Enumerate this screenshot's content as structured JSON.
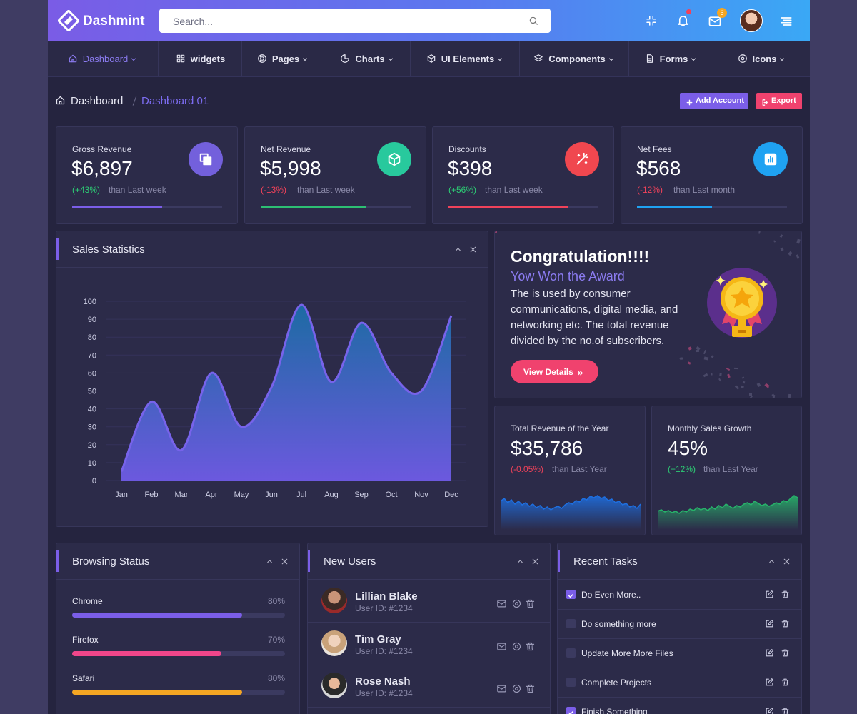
{
  "header": {
    "brand": "Dashmint",
    "search_placeholder": "Search...",
    "mail_badge": 6
  },
  "nav": [
    "Dashboard",
    "widgets",
    "Pages",
    "Charts",
    "UI Elements",
    "Components",
    "Forms",
    "Icons"
  ],
  "breadcrumb": [
    "Dashboard",
    "Dashboard 01"
  ],
  "actions": [
    "Add Account",
    "Export"
  ],
  "stat_cards": [
    {
      "title": "Gross Revenue",
      "value": "$6,897",
      "change": "(+43%)",
      "period": "than Last week",
      "progress": 60,
      "color": "#7b5ee8",
      "change_color": "#2dcb74",
      "icon_color": "#7360dc"
    },
    {
      "title": "Net Revenue",
      "value": "$5,998",
      "change": "(-13%)",
      "period": "than Last week",
      "progress": 70,
      "color": "#2dbf73",
      "change_color": "#f0425a",
      "icon_color": "#28c99d"
    },
    {
      "title": "Discounts",
      "value": "$398",
      "change": "(+56%)",
      "period": "than Last week",
      "progress": 80,
      "color": "#f0425a",
      "change_color": "#2dcb74",
      "icon_color": "#f0474f"
    },
    {
      "title": "Net Fees",
      "value": "$568",
      "change": "(-12%)",
      "period": "than Last month",
      "progress": 50,
      "color": "#1fa2f2",
      "change_color": "#f0425a",
      "icon_color": "#1fa2f2"
    }
  ],
  "sales_statistics": {
    "title": "Sales Statistics",
    "chart": {
      "type": "area",
      "categories": [
        "Jan",
        "Feb",
        "Mar",
        "Apr",
        "May",
        "Jun",
        "Jul",
        "Aug",
        "Sep",
        "Oct",
        "Nov",
        "Dec"
      ],
      "values": [
        5,
        44,
        17,
        60,
        30,
        52,
        98,
        55,
        88,
        60,
        50,
        92
      ],
      "ylim": [
        0,
        100
      ],
      "yticks": [
        0,
        10,
        20,
        30,
        40,
        50,
        60,
        70,
        80,
        90,
        100
      ],
      "color": "#6f5be6",
      "grid": true
    }
  },
  "award": {
    "title": "Congratulation!!!!",
    "subtitle": "Yow Won the Award",
    "text": "The is used by consumer communications, digital media, and networking etc. The total revenue divided by the no.of subscribers.",
    "button": "View Details"
  },
  "summary_cards": [
    {
      "title": "Total Revenue of the Year",
      "value": "$35,786",
      "change": "(-0.05%)",
      "period": "than Last Year",
      "change_color": "#f0425a",
      "color": "#1e6fe0",
      "sparkline": [
        40,
        44,
        38,
        42,
        36,
        40,
        35,
        38,
        33,
        36,
        31,
        34,
        29,
        32,
        28,
        31,
        33,
        30,
        35,
        38,
        36,
        41,
        39,
        44,
        42,
        47,
        45,
        48,
        44,
        46,
        41,
        43,
        38,
        40,
        35,
        37,
        32,
        34,
        30,
        36
      ]
    },
    {
      "title": "Monthly Sales Growth",
      "value": "45%",
      "change": "(+12%)",
      "period": "than Last Year",
      "change_color": "#2dcb74",
      "color": "#27b36a",
      "sparkline": [
        26,
        28,
        25,
        27,
        24,
        26,
        23,
        27,
        25,
        29,
        27,
        31,
        28,
        30,
        27,
        32,
        29,
        34,
        31,
        36,
        33,
        30,
        34,
        32,
        36,
        38,
        35,
        40,
        37,
        34,
        36,
        33,
        35,
        38,
        36,
        41,
        39,
        44,
        48,
        45
      ]
    }
  ],
  "browsing_status": {
    "title": "Browsing Status",
    "items": [
      {
        "name": "Chrome",
        "value": 80,
        "value_label": "80%",
        "color": "#7b5ee8"
      },
      {
        "name": "Firefox",
        "value": 70,
        "value_label": "70%",
        "color": "#f0468a"
      },
      {
        "name": "Safari",
        "value": 80,
        "value_label": "80%",
        "color": "#f5a623"
      }
    ]
  },
  "new_users": {
    "title": "New Users",
    "users": [
      {
        "name": "Lillian Blake",
        "id": "User ID: #1234"
      },
      {
        "name": "Tim Gray",
        "id": "User ID: #1234"
      },
      {
        "name": "Rose Nash",
        "id": "User ID: #1234"
      }
    ]
  },
  "recent_tasks": {
    "title": "Recent Tasks",
    "tasks": [
      {
        "label": "Do Even More..",
        "done": true
      },
      {
        "label": "Do something more",
        "done": false
      },
      {
        "label": "Update More More Files",
        "done": false
      },
      {
        "label": "Complete Projects",
        "done": false
      },
      {
        "label": "Finish Something",
        "done": true
      }
    ]
  }
}
